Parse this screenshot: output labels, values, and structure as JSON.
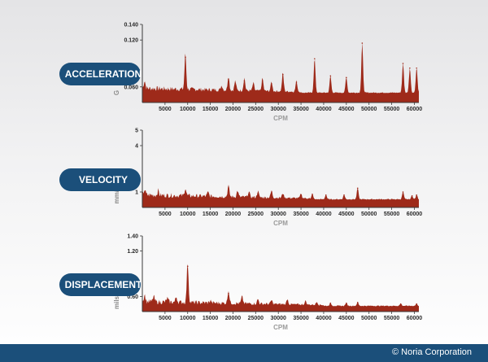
{
  "chart_data": [
    {
      "type": "area",
      "title": "ACCELERATION",
      "ylabel": "G",
      "xlabel": "CPM",
      "xlim": [
        0,
        61000
      ],
      "xticks": [
        5000,
        10000,
        15000,
        20000,
        25000,
        30000,
        35000,
        40000,
        45000,
        50000,
        55000,
        60000
      ],
      "ylim": [
        0.04,
        0.14
      ],
      "yticks": [
        0.06,
        0.12,
        0.14
      ],
      "ytick_labels": [
        "0.060",
        "0.120",
        "0.140"
      ],
      "baseline": 0.052,
      "noise_cutoff_x": 35000,
      "x": [
        500,
        9500,
        17500,
        19000,
        20500,
        22500,
        24500,
        26500,
        28500,
        31000,
        34000,
        38000,
        41500,
        45000,
        48500,
        57500,
        59000,
        60500
      ],
      "values": [
        0.062,
        0.098,
        0.058,
        0.07,
        0.064,
        0.068,
        0.062,
        0.068,
        0.064,
        0.076,
        0.066,
        0.096,
        0.074,
        0.072,
        0.116,
        0.09,
        0.084,
        0.084
      ],
      "fill": "#9e2a1a"
    },
    {
      "type": "area",
      "title": "VELOCITY",
      "ylabel": "mm/s",
      "xlabel": "CPM",
      "xlim": [
        0,
        61000
      ],
      "xticks": [
        5000,
        10000,
        15000,
        20000,
        25000,
        30000,
        35000,
        40000,
        45000,
        50000,
        55000,
        60000
      ],
      "ylim": [
        0,
        5
      ],
      "yticks": [
        1,
        4,
        5
      ],
      "ytick_labels": [
        "1",
        "4",
        "5"
      ],
      "baseline": 0.5,
      "noise_cutoff_x": 37000,
      "x": [
        500,
        3500,
        9500,
        14500,
        19000,
        21000,
        23500,
        25500,
        28500,
        31000,
        35000,
        37500,
        40500,
        44500,
        47500,
        57500,
        59500,
        60500
      ],
      "values": [
        0.85,
        0.8,
        1.0,
        0.75,
        1.2,
        0.9,
        0.85,
        0.9,
        0.95,
        0.8,
        0.8,
        0.85,
        0.8,
        0.8,
        1.25,
        1.0,
        0.75,
        0.8
      ],
      "fill": "#9e2a1a"
    },
    {
      "type": "area",
      "title": "DISPLACEMENT",
      "ylabel": "mils",
      "xlabel": "CPM",
      "xlim": [
        0,
        61000
      ],
      "xticks": [
        5000,
        10000,
        15000,
        20000,
        25000,
        30000,
        35000,
        40000,
        45000,
        50000,
        55000,
        60000
      ],
      "ylim": [
        0.4,
        1.4
      ],
      "yticks": [
        0.6,
        1.2,
        1.4
      ],
      "ytick_labels": [
        "0.60",
        "1.20",
        "1.40"
      ],
      "baseline": 0.47,
      "noise_cutoff_x": 40000,
      "x": [
        500,
        2500,
        5500,
        7500,
        10000,
        15000,
        19000,
        22000,
        25500,
        28500,
        32000,
        36000,
        38500,
        41500,
        45000,
        47500,
        57000,
        60500
      ],
      "values": [
        0.56,
        0.54,
        0.52,
        0.54,
        1.0,
        0.5,
        0.64,
        0.56,
        0.53,
        0.52,
        0.54,
        0.52,
        0.51,
        0.51,
        0.51,
        0.52,
        0.5,
        0.5
      ],
      "fill": "#9e2a1a"
    }
  ],
  "colors": {
    "pill": "#1b4f7a",
    "area": "#9e2a1a",
    "axis": "#3a3a3a",
    "footer": "#1b4f7a"
  },
  "footer": {
    "copyright": "© Noria Corporation"
  }
}
